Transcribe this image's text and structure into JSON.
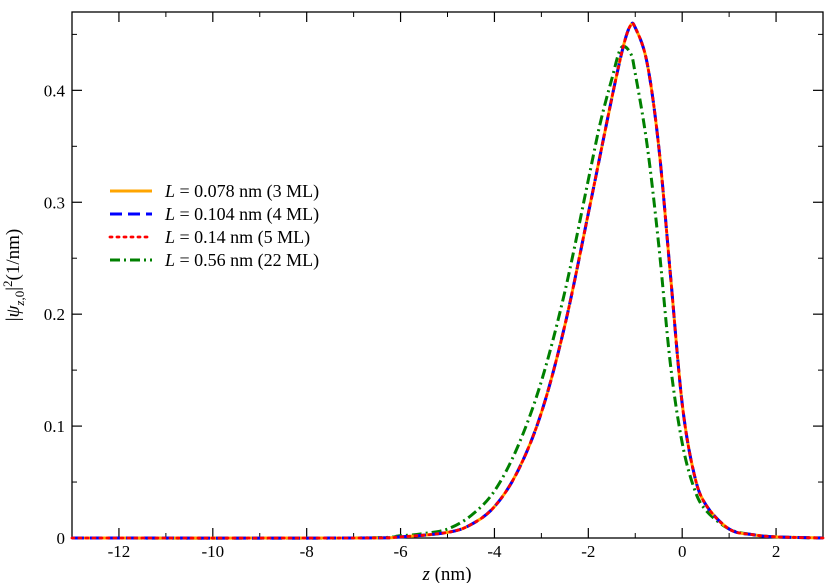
{
  "chart_data": {
    "type": "line",
    "xlabel": "z (nm)",
    "ylabel": "|ψz,0|²(1/nm)",
    "xlim": [
      -13,
      3
    ],
    "ylim": [
      0,
      0.47
    ],
    "x_ticks": [
      -12,
      -10,
      -8,
      -6,
      -4,
      -2,
      0,
      2
    ],
    "x_tick_labels": [
      "-12",
      "-10",
      "-8",
      "-6",
      "-4",
      "-2",
      "0",
      "2"
    ],
    "y_ticks": [
      0,
      0.1,
      0.2,
      0.3,
      0.4
    ],
    "y_tick_labels": [
      "0",
      "0.1",
      "0.2",
      "0.3",
      "0.4"
    ],
    "grid": false,
    "legend_position": "left-center",
    "series": [
      {
        "name": "L = 0.078 nm (3 ML)",
        "color": "#ffa500",
        "dash": "solid",
        "x": [
          -13,
          -7,
          -6,
          -5,
          -4.5,
          -4,
          -3.5,
          -3,
          -2.5,
          -2,
          -1.5,
          -1.25,
          -1.1,
          -1,
          -0.75,
          -0.5,
          -0.25,
          0,
          0.25,
          0.5,
          1,
          1.5,
          2,
          3
        ],
        "y": [
          0,
          0,
          0.001,
          0.005,
          0.012,
          0.028,
          0.06,
          0.112,
          0.19,
          0.29,
          0.393,
          0.44,
          0.458,
          0.456,
          0.425,
          0.35,
          0.235,
          0.12,
          0.058,
          0.03,
          0.008,
          0.003,
          0.001,
          0
        ]
      },
      {
        "name": "L = 0.104 nm (4 ML)",
        "color": "#0000ff",
        "dash": "dashed",
        "x": [
          -13,
          -7,
          -6,
          -5,
          -4.5,
          -4,
          -3.5,
          -3,
          -2.5,
          -2,
          -1.5,
          -1.25,
          -1.1,
          -1,
          -0.75,
          -0.5,
          -0.25,
          0,
          0.25,
          0.5,
          1,
          1.5,
          2,
          3
        ],
        "y": [
          0,
          0,
          0.001,
          0.005,
          0.012,
          0.028,
          0.06,
          0.112,
          0.19,
          0.29,
          0.393,
          0.44,
          0.458,
          0.456,
          0.425,
          0.35,
          0.235,
          0.12,
          0.058,
          0.03,
          0.008,
          0.003,
          0.001,
          0
        ]
      },
      {
        "name": "L = 0.14 nm (5 ML)",
        "color": "#ff0000",
        "dash": "dotted",
        "x": [
          -13,
          -7,
          -6,
          -5,
          -4.5,
          -4,
          -3.5,
          -3,
          -2.5,
          -2,
          -1.5,
          -1.25,
          -1.1,
          -1,
          -0.75,
          -0.5,
          -0.25,
          0,
          0.25,
          0.5,
          1,
          1.5,
          2,
          3
        ],
        "y": [
          0,
          0,
          0.001,
          0.005,
          0.012,
          0.028,
          0.06,
          0.112,
          0.19,
          0.29,
          0.393,
          0.44,
          0.458,
          0.456,
          0.425,
          0.35,
          0.235,
          0.12,
          0.058,
          0.03,
          0.008,
          0.003,
          0.001,
          0
        ]
      },
      {
        "name": "L = 0.56 nm (22 ML)",
        "color": "#008000",
        "dash": "dashdot",
        "x": [
          -13,
          -7,
          -6,
          -5.5,
          -5,
          -4.5,
          -4,
          -3.5,
          -3,
          -2.5,
          -2,
          -1.75,
          -1.5,
          -1.3,
          -1.1,
          -1,
          -0.75,
          -0.5,
          -0.25,
          0,
          0.25,
          0.5,
          1,
          1.5,
          2,
          3
        ],
        "y": [
          0,
          0,
          0.002,
          0.004,
          0.008,
          0.02,
          0.042,
          0.082,
          0.14,
          0.22,
          0.32,
          0.37,
          0.41,
          0.438,
          0.433,
          0.415,
          0.352,
          0.262,
          0.155,
          0.085,
          0.045,
          0.025,
          0.008,
          0.003,
          0.001,
          0
        ]
      }
    ]
  }
}
